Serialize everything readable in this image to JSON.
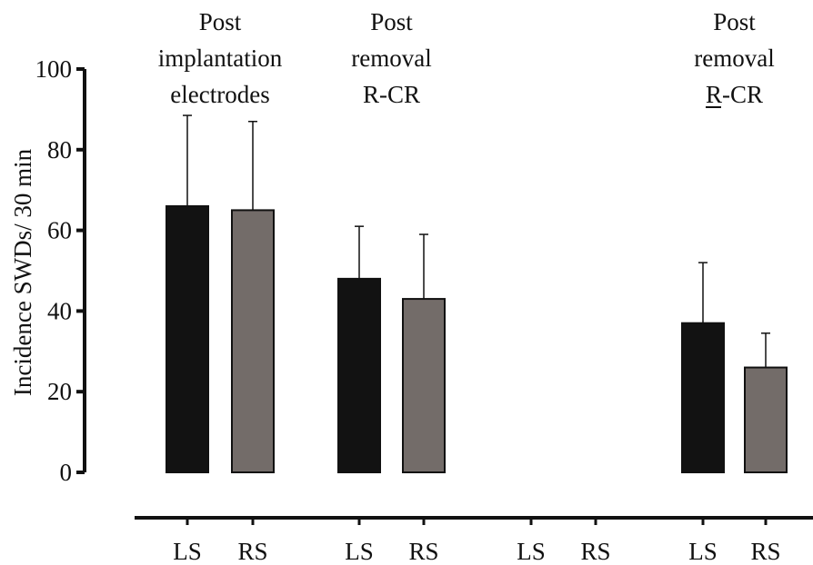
{
  "chart_data": {
    "type": "bar",
    "ylabel": "Incidence SWDs/ 30 min",
    "ylim": [
      0,
      100
    ],
    "yticks": [
      0,
      20,
      40,
      60,
      80,
      100
    ],
    "grid": false,
    "colors": {
      "LS": "#121212",
      "RS": "#736c69",
      "stroke": "#111111"
    },
    "groups": [
      {
        "label_lines": [
          "Post",
          "implantation",
          "electrodes"
        ],
        "bars": [
          {
            "category": "LS",
            "value": 66,
            "error": 22.5
          },
          {
            "category": "RS",
            "value": 65,
            "error": 22
          }
        ]
      },
      {
        "label_lines": [
          "Post",
          "removal",
          "R-CR"
        ],
        "bars": [
          {
            "category": "LS",
            "value": 48,
            "error": 13
          },
          {
            "category": "RS",
            "value": 43,
            "error": 16
          }
        ]
      },
      {
        "label_lines": [],
        "bars": [
          {
            "category": "LS",
            "value": 0,
            "error": 0
          },
          {
            "category": "RS",
            "value": 0,
            "error": 0
          }
        ]
      },
      {
        "label_lines": [
          "Post",
          "removal",
          "R-CR"
        ],
        "label_underline_first_char_last_line": true,
        "bars": [
          {
            "category": "LS",
            "value": 37,
            "error": 15
          },
          {
            "category": "RS",
            "value": 26,
            "error": 8.5
          }
        ]
      }
    ]
  }
}
